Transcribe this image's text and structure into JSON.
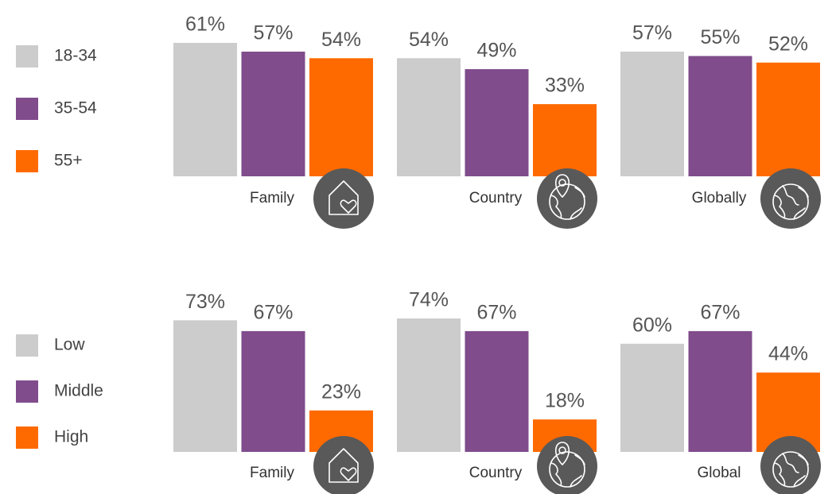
{
  "chart_data": [
    {
      "type": "bar",
      "categories": [
        "Family",
        "Country",
        "Globally"
      ],
      "series": [
        {
          "name": "18-34",
          "color": "#cccccc",
          "values": [
            61,
            54,
            57
          ],
          "value_labels": [
            "61%",
            "54%",
            "57%"
          ]
        },
        {
          "name": "35-54",
          "color": "#804c8c",
          "values": [
            57,
            49,
            55
          ],
          "value_labels": [
            "57%",
            "49%",
            "55%"
          ]
        },
        {
          "name": "55+",
          "color": "#ff6a00",
          "values": [
            54,
            33,
            52
          ],
          "value_labels": [
            "54%",
            "33%",
            "52%"
          ]
        }
      ]
    },
    {
      "type": "bar",
      "categories": [
        "Family",
        "Country",
        "Global"
      ],
      "series": [
        {
          "name": "Low",
          "color": "#cccccc",
          "values": [
            73,
            74,
            60
          ],
          "value_labels": [
            "73%",
            "74%",
            "60%"
          ]
        },
        {
          "name": "Middle",
          "color": "#804c8c",
          "values": [
            67,
            67,
            67
          ],
          "value_labels": [
            "67%",
            "67%",
            "67%"
          ]
        },
        {
          "name": "High",
          "color": "#ff6a00",
          "values": [
            23,
            18,
            44
          ],
          "value_labels": [
            "23%",
            "18%",
            "44%"
          ]
        }
      ]
    }
  ]
}
